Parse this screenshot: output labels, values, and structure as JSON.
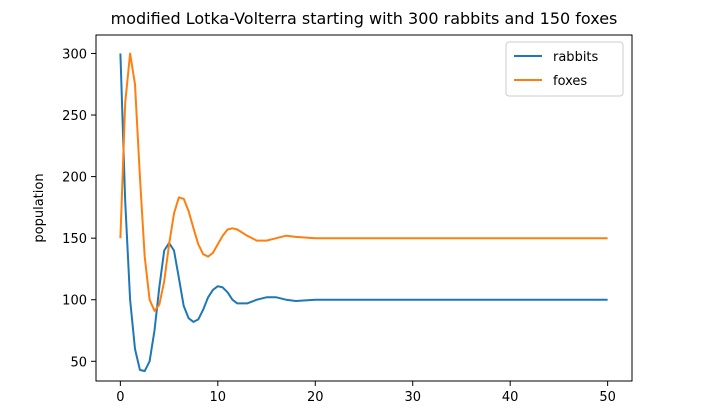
{
  "chart_data": {
    "type": "line",
    "title": "modified Lotka-Volterra starting with 300 rabbits and 150 foxes",
    "xlabel": "",
    "ylabel": "population",
    "xlim": [
      -2.5,
      52.5
    ],
    "ylim": [
      34,
      315
    ],
    "xticks": [
      0,
      10,
      20,
      30,
      40,
      50
    ],
    "yticks": [
      50,
      100,
      150,
      200,
      250,
      300
    ],
    "grid": false,
    "legend_position": "top-right",
    "series": [
      {
        "name": "rabbits",
        "color": "#1f77b4",
        "points": [
          [
            0,
            300
          ],
          [
            0.5,
            180
          ],
          [
            1,
            100
          ],
          [
            1.5,
            60
          ],
          [
            2,
            43
          ],
          [
            2.5,
            42
          ],
          [
            3,
            50
          ],
          [
            3.5,
            75
          ],
          [
            4,
            110
          ],
          [
            4.5,
            140
          ],
          [
            5,
            146
          ],
          [
            5.5,
            140
          ],
          [
            6,
            118
          ],
          [
            6.5,
            95
          ],
          [
            7,
            85
          ],
          [
            7.5,
            82
          ],
          [
            8,
            84
          ],
          [
            8.5,
            92
          ],
          [
            9,
            102
          ],
          [
            9.5,
            108
          ],
          [
            10,
            111
          ],
          [
            10.5,
            110
          ],
          [
            11,
            106
          ],
          [
            11.5,
            100
          ],
          [
            12,
            97
          ],
          [
            13,
            97
          ],
          [
            14,
            100
          ],
          [
            15,
            102
          ],
          [
            16,
            102
          ],
          [
            17,
            100
          ],
          [
            18,
            99
          ],
          [
            20,
            100
          ],
          [
            25,
            100
          ],
          [
            30,
            100
          ],
          [
            35,
            100
          ],
          [
            40,
            100
          ],
          [
            45,
            100
          ],
          [
            50,
            100
          ]
        ]
      },
      {
        "name": "foxes",
        "color": "#ff7f0e",
        "points": [
          [
            0,
            150
          ],
          [
            0.5,
            260
          ],
          [
            1,
            300
          ],
          [
            1.5,
            275
          ],
          [
            2,
            200
          ],
          [
            2.5,
            135
          ],
          [
            3,
            100
          ],
          [
            3.5,
            91
          ],
          [
            4,
            96
          ],
          [
            4.5,
            115
          ],
          [
            5,
            145
          ],
          [
            5.5,
            170
          ],
          [
            6,
            183
          ],
          [
            6.5,
            182
          ],
          [
            7,
            172
          ],
          [
            7.5,
            158
          ],
          [
            8,
            145
          ],
          [
            8.5,
            137
          ],
          [
            9,
            135
          ],
          [
            9.5,
            138
          ],
          [
            10,
            145
          ],
          [
            10.5,
            152
          ],
          [
            11,
            157
          ],
          [
            11.5,
            158
          ],
          [
            12,
            157
          ],
          [
            13,
            152
          ],
          [
            14,
            148
          ],
          [
            15,
            148
          ],
          [
            16,
            150
          ],
          [
            17,
            152
          ],
          [
            18,
            151
          ],
          [
            20,
            150
          ],
          [
            25,
            150
          ],
          [
            30,
            150
          ],
          [
            35,
            150
          ],
          [
            40,
            150
          ],
          [
            45,
            150
          ],
          [
            50,
            150
          ]
        ]
      }
    ]
  }
}
